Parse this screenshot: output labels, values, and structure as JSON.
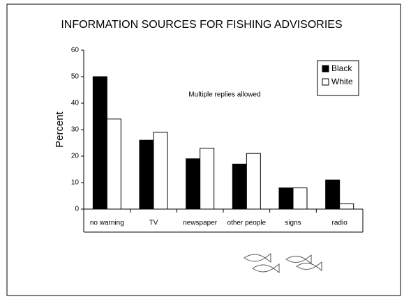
{
  "chart_data": {
    "type": "bar",
    "title": "INFORMATION SOURCES FOR FISHING ADVISORIES",
    "y_label": "Percent",
    "annotation": "Multiple replies allowed",
    "categories": [
      "no warning",
      "TV",
      "newspaper",
      "other people",
      "signs",
      "radio"
    ],
    "series": [
      {
        "name": "Black",
        "color": "#000000",
        "values": [
          50,
          26,
          19,
          17,
          8,
          11
        ]
      },
      {
        "name": "White",
        "color": "#ffffff",
        "values": [
          34,
          29,
          23,
          21,
          8,
          2
        ]
      }
    ],
    "ylim": [
      0,
      60
    ],
    "yticks": [
      0,
      10,
      20,
      30,
      40,
      50,
      60
    ],
    "grid": false,
    "legend": "top-right"
  }
}
